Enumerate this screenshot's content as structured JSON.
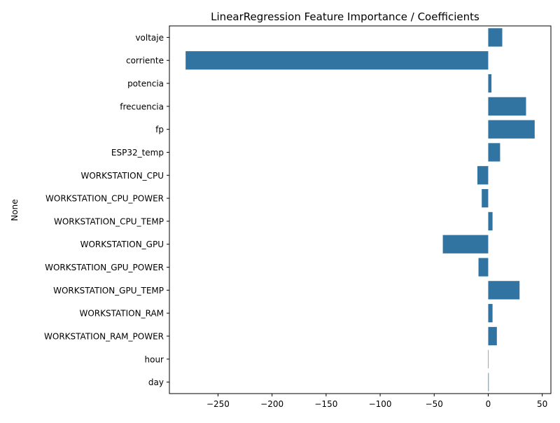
{
  "chart_data": {
    "type": "bar",
    "orientation": "horizontal",
    "title": "LinearRegression Feature Importance / Coefficients",
    "xlabel": "",
    "ylabel": "None",
    "bar_color": "#3274a1",
    "xlim": [
      -295,
      58
    ],
    "x_ticks": [
      -250,
      -200,
      -150,
      -100,
      -50,
      0,
      50
    ],
    "x_tick_labels": [
      "−250",
      "−200",
      "−150",
      "−100",
      "−50",
      "0",
      "50"
    ],
    "grid": false,
    "categories": [
      "voltaje",
      "corriente",
      "potencia",
      "frecuencia",
      "fp",
      "ESP32_temp",
      "WORKSTATION_CPU",
      "WORKSTATION_CPU_POWER",
      "WORKSTATION_CPU_TEMP",
      "WORKSTATION_GPU",
      "WORKSTATION_GPU_POWER",
      "WORKSTATION_GPU_TEMP",
      "WORKSTATION_RAM",
      "WORKSTATION_RAM_POWER",
      "hour",
      "day"
    ],
    "values": [
      13,
      -280,
      3,
      35,
      43,
      11,
      -10,
      -6,
      4,
      -42,
      -9,
      29,
      4,
      8,
      0,
      0.5
    ]
  }
}
